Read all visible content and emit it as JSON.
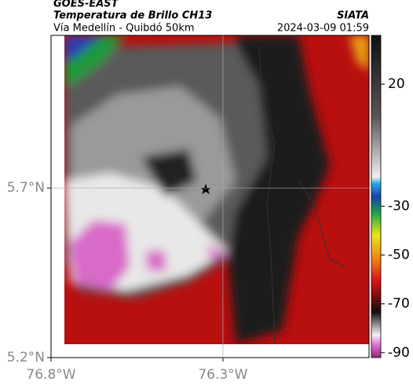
{
  "header": {
    "title": "GOES-EAST",
    "subtitle": "Temperatura de Brillo CH13",
    "source": "SIATA",
    "route": "Vía Medellín - Quibdó 50km",
    "timestamp": "2024-03-09 01:59"
  },
  "map": {
    "xlim": [
      -76.8,
      -75.875
    ],
    "ylim": [
      5.2,
      6.15
    ],
    "xticks": [
      {
        "value": -76.8,
        "label": "76.8°W"
      },
      {
        "value": -76.3,
        "label": "76.3°W"
      }
    ],
    "yticks": [
      {
        "value": 5.7,
        "label": "5.7°N"
      },
      {
        "value": 5.2,
        "label": "5.2°N"
      }
    ]
  },
  "colorbar": {
    "lim": [
      40,
      -92
    ],
    "ticks": [
      20,
      -30,
      -50,
      -70,
      -90
    ]
  }
}
